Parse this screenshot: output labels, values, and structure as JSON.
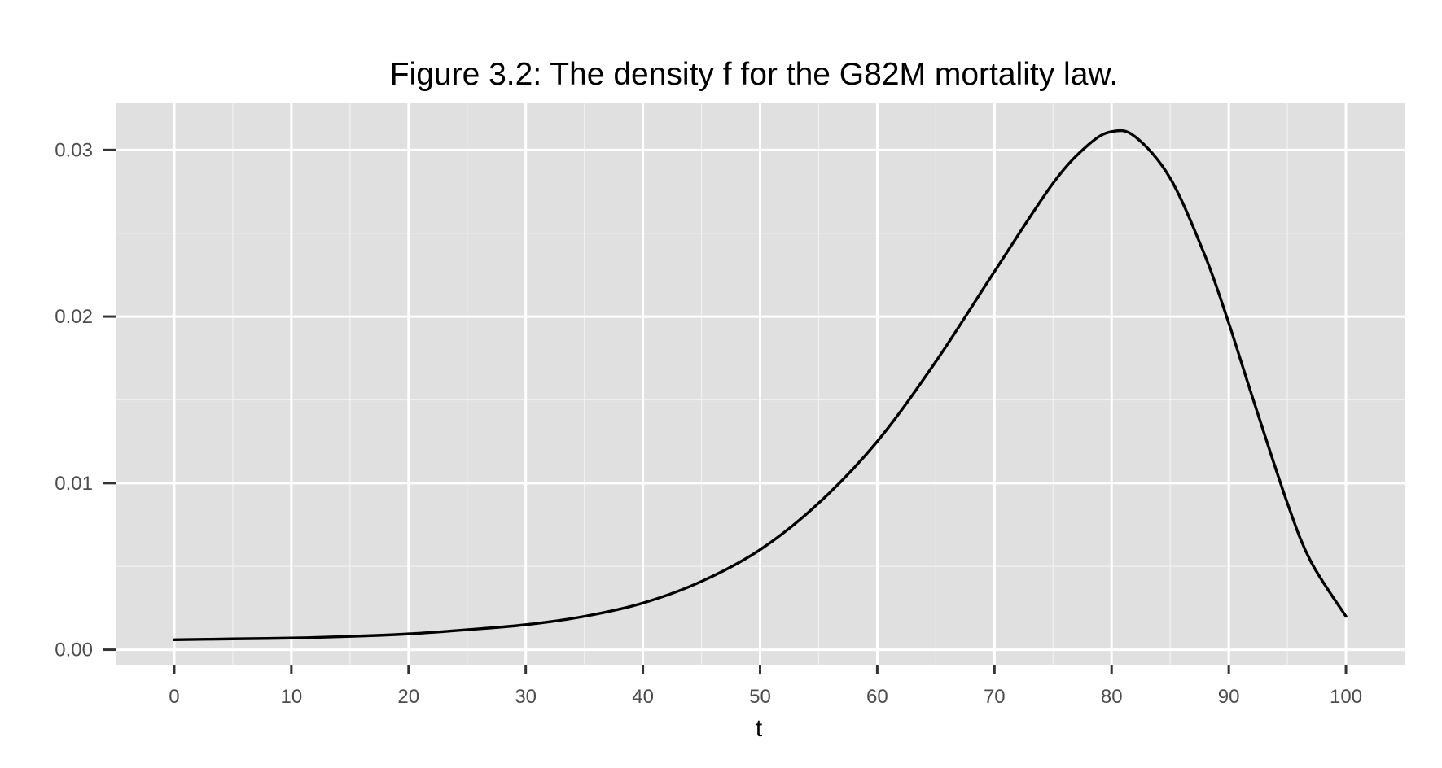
{
  "chart_data": {
    "type": "line",
    "title": "Figure 3.2: The density f for the G82M mortality law.",
    "xlabel": "t",
    "ylabel": "",
    "xlim": [
      -5,
      105
    ],
    "ylim": [
      -0.0009,
      0.0328
    ],
    "x_ticks": [
      0,
      10,
      20,
      30,
      40,
      50,
      60,
      70,
      80,
      90,
      100
    ],
    "x_tick_labels": [
      "0",
      "10",
      "20",
      "30",
      "40",
      "50",
      "60",
      "70",
      "80",
      "90",
      "100"
    ],
    "x_minor_ticks": [
      5,
      15,
      25,
      35,
      45,
      55,
      65,
      75,
      85,
      95
    ],
    "y_ticks": [
      0.0,
      0.01,
      0.02,
      0.03
    ],
    "y_tick_labels": [
      "0.00",
      "0.01",
      "0.02",
      "0.03"
    ],
    "y_minor_ticks": [
      0.005,
      0.015,
      0.025
    ],
    "grid": true,
    "legend": "none",
    "colors": {
      "panel_background": "#e0e0e0",
      "grid_major": "#ffffff",
      "grid_minor": "#f0f0f0",
      "line": "#000000",
      "tick_mark": "#333333",
      "tick_text": "#4d4d4d"
    },
    "series": [
      {
        "x": [
          0,
          5,
          10,
          15,
          20,
          25,
          30,
          35,
          40,
          45,
          50,
          55,
          60,
          65,
          70,
          75,
          78,
          80,
          82,
          85,
          88,
          90,
          92,
          95,
          97,
          100
        ],
        "y": [
          0.0006,
          0.00065,
          0.0007,
          0.0008,
          0.00095,
          0.0012,
          0.0015,
          0.002,
          0.0028,
          0.0041,
          0.006,
          0.0088,
          0.0125,
          0.0173,
          0.0227,
          0.028,
          0.0303,
          0.0311,
          0.0308,
          0.0283,
          0.0236,
          0.0196,
          0.0152,
          0.0088,
          0.0053,
          0.002
        ]
      }
    ]
  }
}
